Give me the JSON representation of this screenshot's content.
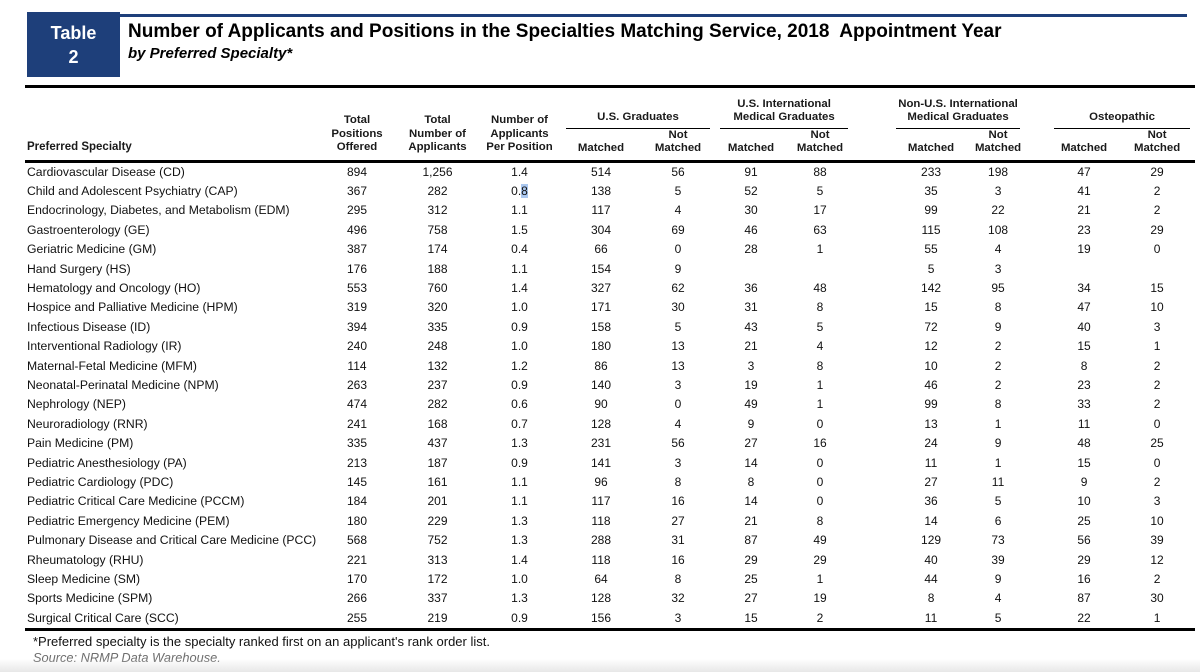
{
  "header": {
    "table_label": "Table",
    "table_number": "2",
    "title": "Number of Applicants and Positions in the Specialties Matching Service, 2018  Appointment Year",
    "subtitle": "by Preferred Specialty*"
  },
  "colors": {
    "accent_blue": "#1e3f7a",
    "text_selection_highlight": "#abc8f0"
  },
  "table": {
    "row_header": "Preferred Specialty",
    "stat_columns": [
      "Total\nPositions\nOffered",
      "Total\nNumber of\nApplicants",
      "Number of\nApplicants\nPer Position"
    ],
    "groups": [
      "U.S. Graduates",
      "U.S. International\nMedical Graduates",
      "Non-U.S. International\nMedical Graduates",
      "Osteopathic"
    ],
    "subheaders": {
      "matched": "Matched",
      "not_matched": "Not\nMatched"
    },
    "column_keys": [
      "positions_offered",
      "total_applicants",
      "applicants_per_position",
      "us_grad_matched",
      "us_grad_not_matched",
      "us_img_matched",
      "us_img_not_matched",
      "non_us_img_matched",
      "non_us_img_not_matched",
      "osteopathic_matched",
      "osteopathic_not_matched"
    ],
    "rows": [
      {
        "specialty": "Cardiovascular Disease (CD)",
        "values": [
          "894",
          "1,256",
          "1.4",
          "514",
          "56",
          "91",
          "88",
          "233",
          "198",
          "47",
          "29"
        ]
      },
      {
        "specialty": "Child and Adolescent Psychiatry (CAP)",
        "values": [
          "367",
          "282",
          "0.8",
          "138",
          "5",
          "52",
          "5",
          "35",
          "3",
          "41",
          "2"
        ]
      },
      {
        "specialty": "Endocrinology, Diabetes, and Metabolism (EDM)",
        "values": [
          "295",
          "312",
          "1.1",
          "117",
          "4",
          "30",
          "17",
          "99",
          "22",
          "21",
          "2"
        ]
      },
      {
        "specialty": "Gastroenterology (GE)",
        "values": [
          "496",
          "758",
          "1.5",
          "304",
          "69",
          "46",
          "63",
          "115",
          "108",
          "23",
          "29"
        ]
      },
      {
        "specialty": "Geriatric Medicine (GM)",
        "values": [
          "387",
          "174",
          "0.4",
          "66",
          "0",
          "28",
          "1",
          "55",
          "4",
          "19",
          "0"
        ]
      },
      {
        "specialty": "Hand Surgery (HS)",
        "values": [
          "176",
          "188",
          "1.1",
          "154",
          "9",
          "",
          "",
          "5",
          "3",
          "",
          ""
        ]
      },
      {
        "specialty": "Hematology and Oncology (HO)",
        "values": [
          "553",
          "760",
          "1.4",
          "327",
          "62",
          "36",
          "48",
          "142",
          "95",
          "34",
          "15"
        ]
      },
      {
        "specialty": "Hospice and Palliative Medicine (HPM)",
        "values": [
          "319",
          "320",
          "1.0",
          "171",
          "30",
          "31",
          "8",
          "15",
          "8",
          "47",
          "10"
        ]
      },
      {
        "specialty": "Infectious Disease (ID)",
        "values": [
          "394",
          "335",
          "0.9",
          "158",
          "5",
          "43",
          "5",
          "72",
          "9",
          "40",
          "3"
        ]
      },
      {
        "specialty": "Interventional Radiology (IR)",
        "values": [
          "240",
          "248",
          "1.0",
          "180",
          "13",
          "21",
          "4",
          "12",
          "2",
          "15",
          "1"
        ]
      },
      {
        "specialty": "Maternal-Fetal Medicine (MFM)",
        "values": [
          "114",
          "132",
          "1.2",
          "86",
          "13",
          "3",
          "8",
          "10",
          "2",
          "8",
          "2"
        ]
      },
      {
        "specialty": "Neonatal-Perinatal Medicine (NPM)",
        "values": [
          "263",
          "237",
          "0.9",
          "140",
          "3",
          "19",
          "1",
          "46",
          "2",
          "23",
          "2"
        ]
      },
      {
        "specialty": "Nephrology (NEP)",
        "values": [
          "474",
          "282",
          "0.6",
          "90",
          "0",
          "49",
          "1",
          "99",
          "8",
          "33",
          "2"
        ]
      },
      {
        "specialty": "Neuroradiology (RNR)",
        "values": [
          "241",
          "168",
          "0.7",
          "128",
          "4",
          "9",
          "0",
          "13",
          "1",
          "11",
          "0"
        ]
      },
      {
        "specialty": "Pain Medicine (PM)",
        "values": [
          "335",
          "437",
          "1.3",
          "231",
          "56",
          "27",
          "16",
          "24",
          "9",
          "48",
          "25"
        ]
      },
      {
        "specialty": "Pediatric Anesthesiology (PA)",
        "values": [
          "213",
          "187",
          "0.9",
          "141",
          "3",
          "14",
          "0",
          "11",
          "1",
          "15",
          "0"
        ]
      },
      {
        "specialty": "Pediatric Cardiology (PDC)",
        "values": [
          "145",
          "161",
          "1.1",
          "96",
          "8",
          "8",
          "0",
          "27",
          "11",
          "9",
          "2"
        ]
      },
      {
        "specialty": "Pediatric Critical Care Medicine (PCCM)",
        "values": [
          "184",
          "201",
          "1.1",
          "117",
          "16",
          "14",
          "0",
          "36",
          "5",
          "10",
          "3"
        ]
      },
      {
        "specialty": "Pediatric Emergency Medicine (PEM)",
        "values": [
          "180",
          "229",
          "1.3",
          "118",
          "27",
          "21",
          "8",
          "14",
          "6",
          "25",
          "10"
        ]
      },
      {
        "specialty": "Pulmonary Disease and Critical Care Medicine (PCC)",
        "values": [
          "568",
          "752",
          "1.3",
          "288",
          "31",
          "87",
          "49",
          "129",
          "73",
          "56",
          "39"
        ]
      },
      {
        "specialty": "Rheumatology (RHU)",
        "values": [
          "221",
          "313",
          "1.4",
          "118",
          "16",
          "29",
          "29",
          "40",
          "39",
          "29",
          "12"
        ]
      },
      {
        "specialty": "Sleep Medicine (SM)",
        "values": [
          "170",
          "172",
          "1.0",
          "64",
          "8",
          "25",
          "1",
          "44",
          "9",
          "16",
          "2"
        ]
      },
      {
        "specialty": "Sports Medicine (SPM)",
        "values": [
          "266",
          "337",
          "1.3",
          "128",
          "32",
          "27",
          "19",
          "8",
          "4",
          "87",
          "30"
        ]
      },
      {
        "specialty": "Surgical Critical Care (SCC)",
        "values": [
          "255",
          "219",
          "0.9",
          "156",
          "3",
          "15",
          "2",
          "11",
          "5",
          "22",
          "1"
        ]
      }
    ]
  },
  "selection": {
    "row_index": 1,
    "value_index": 2,
    "selected_text": "8"
  },
  "footnotes": {
    "note": "*Preferred specialty is the specialty ranked first on an applicant's rank order list.",
    "source": "Source: NRMP Data Warehouse."
  }
}
